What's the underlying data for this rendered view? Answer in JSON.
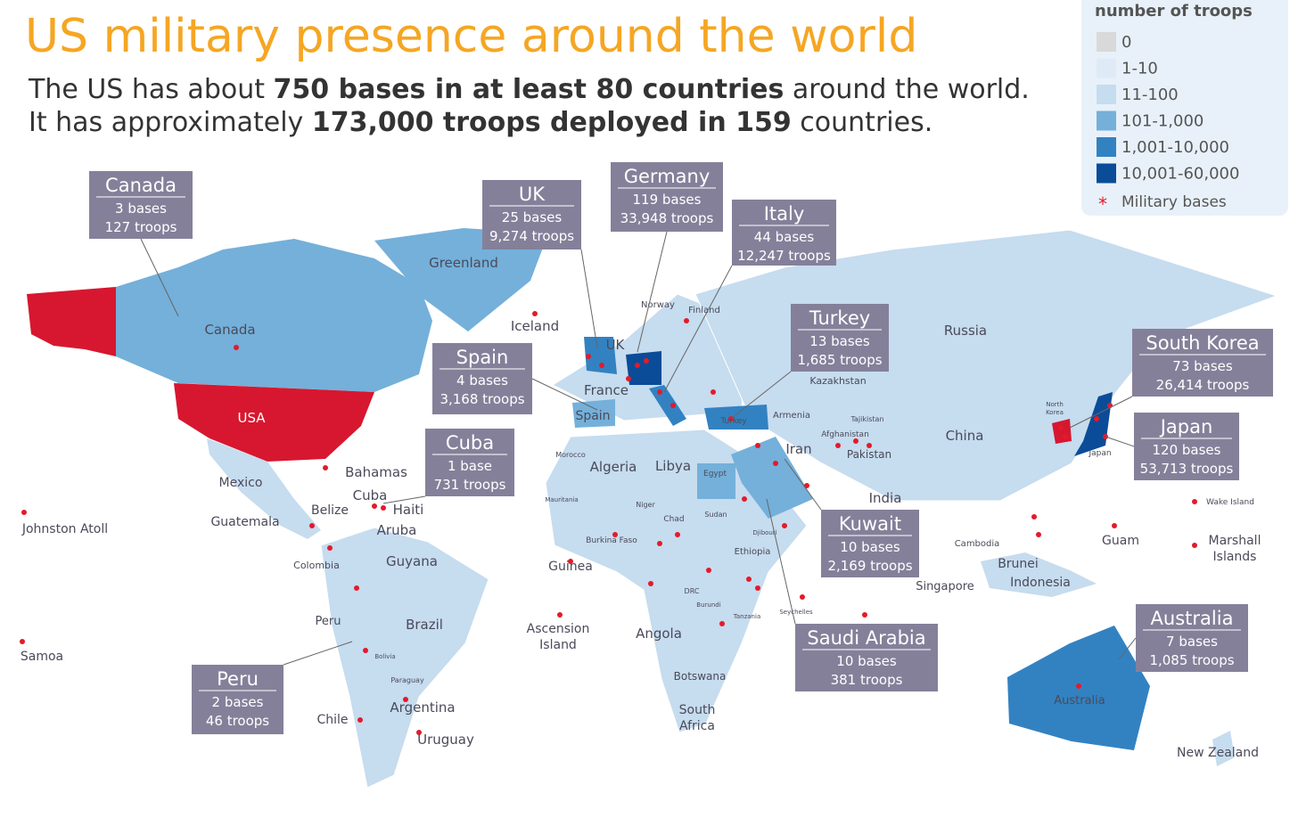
{
  "header": {
    "title": "US military presence around the world",
    "line1": [
      "The US has about ",
      "750 bases in at least 80 countries",
      " around the world."
    ],
    "line2": [
      "It has approximately ",
      "173,000 troops deployed in 159",
      " countries."
    ]
  },
  "legend": {
    "title": "number of troops",
    "items": [
      "0",
      "1-10",
      "11-100",
      "101-1,000",
      "1,001-10,000",
      "10,001-60,000"
    ],
    "bases": "Military bases"
  },
  "callouts": [
    {
      "name": "Canada",
      "bases": "3 bases",
      "troops": "127 troops"
    },
    {
      "name": "UK",
      "bases": "25 bases",
      "troops": "9,274 troops"
    },
    {
      "name": "Germany",
      "bases": "119 bases",
      "troops": "33,948 troops"
    },
    {
      "name": "Italy",
      "bases": "44 bases",
      "troops": "12,247 troops"
    },
    {
      "name": "Spain",
      "bases": "4 bases",
      "troops": "3,168 troops"
    },
    {
      "name": "Turkey",
      "bases": "13 bases",
      "troops": "1,685 troops"
    },
    {
      "name": "Cuba",
      "bases": "1 base",
      "troops": "731 troops"
    },
    {
      "name": "South Korea",
      "bases": "73 bases",
      "troops": "26,414 troops"
    },
    {
      "name": "Japan",
      "bases": "120 bases",
      "troops": "53,713 troops"
    },
    {
      "name": "Kuwait",
      "bases": "10 bases",
      "troops": "2,169 troops"
    },
    {
      "name": "Saudi Arabia",
      "bases": "10 bases",
      "troops": "381 troops"
    },
    {
      "name": "Australia",
      "bases": "7 bases",
      "troops": "1,085 troops"
    },
    {
      "name": "Peru",
      "bases": "2 bases",
      "troops": "46 troops"
    }
  ],
  "labels": [
    "Greenland",
    "Canada",
    "Iceland",
    "Norway",
    "Finland",
    "UK",
    "France",
    "Spain",
    "Russia",
    "Kazakhstan",
    "Turkey",
    "Armenia",
    "Tajikistan",
    "Afghanistan",
    "Iran",
    "Pakistan",
    "China",
    [
      "North",
      "Korea"
    ],
    "Japan",
    "USA",
    "Mexico",
    "Bahamas",
    "Cuba",
    "Haiti",
    "Belize",
    "Guatemala",
    "Aruba",
    "Johnston Atoll",
    "Colombia",
    "Guyana",
    "Peru",
    "Brazil",
    "Bolivia",
    "Paraguay",
    "Argentina",
    "Chile",
    "Uruguay",
    "Samoa",
    "Morocco",
    "Algeria",
    "Libya",
    "Egypt",
    "Mauritania",
    "Niger",
    "Chad",
    "Sudan",
    "Djibouti",
    "Burkina Faso",
    "Guinea",
    "Ethiopia",
    "DRC",
    "Burundi",
    "Tanzania",
    "Seychelles",
    [
      "Ascension",
      "Island"
    ],
    "Angola",
    "Botswana",
    [
      "South",
      "Africa"
    ],
    "India",
    "Cambodia",
    "Brunei",
    "Singapore",
    "Indonesia",
    "Guam",
    "Wake Island",
    [
      "Marshall",
      "Islands"
    ],
    "Australia",
    "New Zealand"
  ]
}
